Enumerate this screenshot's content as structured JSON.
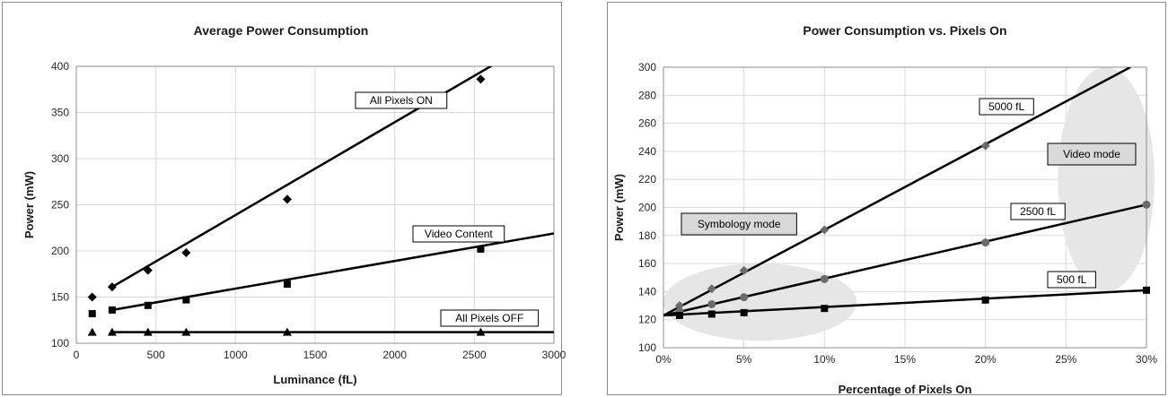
{
  "chart_data": [
    {
      "type": "line",
      "title": "Average Power Consumption",
      "xlabel": "Luminance (fL)",
      "ylabel": "Power (mW)",
      "xlim": [
        0,
        3000
      ],
      "ylim": [
        100,
        400
      ],
      "xticks": [
        0,
        500,
        1000,
        1500,
        2000,
        2500,
        3000
      ],
      "yticks": [
        100,
        150,
        200,
        250,
        300,
        350,
        400
      ],
      "grid": true,
      "series": [
        {
          "name": "All Pixels ON",
          "marker": "diamond",
          "x": [
            100,
            225,
            450,
            690,
            1325,
            2540
          ],
          "y": [
            150,
            161,
            179,
            198,
            256,
            386
          ],
          "fit": [
            [
              225,
              161
            ],
            [
              3000,
              440
            ]
          ]
        },
        {
          "name": "Video Content",
          "marker": "square",
          "x": [
            100,
            225,
            450,
            690,
            1325,
            2540
          ],
          "y": [
            132,
            136,
            141,
            147,
            164,
            202
          ],
          "fit": [
            [
              225,
              136
            ],
            [
              3000,
              219
            ]
          ]
        },
        {
          "name": "All Pixels OFF",
          "marker": "triangle",
          "x": [
            100,
            225,
            450,
            690,
            1325,
            2540
          ],
          "y": [
            112,
            112,
            112,
            112,
            112,
            112
          ],
          "fit": [
            [
              225,
              112
            ],
            [
              3000,
              112
            ]
          ]
        }
      ],
      "annotations": [
        {
          "text": "All Pixels ON"
        },
        {
          "text": "Video Content"
        },
        {
          "text": "All Pixels OFF"
        }
      ]
    },
    {
      "type": "line",
      "title": "Power Consumption vs. Pixels On",
      "xlabel": "Percentage of Pixels On",
      "ylabel": "Power (mW)",
      "xlim": [
        0,
        30
      ],
      "ylim": [
        100,
        300
      ],
      "xticks": [
        0,
        5,
        10,
        15,
        20,
        25,
        30
      ],
      "xtick_labels": [
        "0%",
        "5%",
        "10%",
        "15%",
        "20%",
        "25%",
        "30%"
      ],
      "yticks": [
        100,
        120,
        140,
        160,
        180,
        200,
        220,
        240,
        260,
        280,
        300
      ],
      "grid": true,
      "series": [
        {
          "name": "5000 fL",
          "marker": "diamond",
          "color": "#6b6b6b",
          "x": [
            1,
            3,
            5,
            10,
            20
          ],
          "y": [
            130,
            142,
            155,
            184,
            244
          ],
          "fit": [
            [
              0,
              123
            ],
            [
              29,
              300
            ]
          ]
        },
        {
          "name": "2500 fL",
          "marker": "circle",
          "color": "#6b6b6b",
          "x": [
            1,
            3,
            5,
            10,
            20,
            30
          ],
          "y": [
            126,
            131,
            136,
            149,
            175,
            202
          ],
          "fit": [
            [
              0,
              123
            ],
            [
              30,
              202
            ]
          ]
        },
        {
          "name": "500 fL",
          "marker": "square",
          "color": "#000000",
          "x": [
            1,
            3,
            5,
            10,
            20,
            30
          ],
          "y": [
            123,
            124,
            125,
            128,
            134,
            141
          ],
          "fit": [
            [
              0,
              123
            ],
            [
              30,
              141
            ]
          ]
        }
      ],
      "annotations": [
        {
          "text": "5000 fL"
        },
        {
          "text": "2500 fL"
        },
        {
          "text": "500 fL"
        },
        {
          "text": "Symbology mode"
        },
        {
          "text": "Video mode"
        }
      ],
      "highlights": [
        {
          "label": "Symbology mode",
          "x_range": [
            0,
            12
          ],
          "y_range": [
            105,
            160
          ]
        },
        {
          "label": "Video mode",
          "x_range": [
            24.5,
            30.5
          ],
          "y_range": [
            140,
            300
          ]
        }
      ]
    }
  ]
}
